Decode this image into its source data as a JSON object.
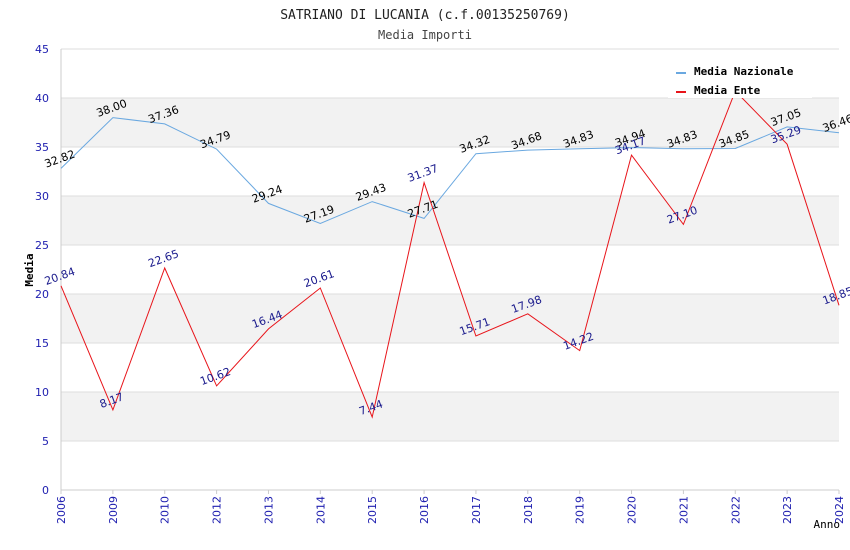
{
  "chart_data": {
    "type": "line",
    "title": "SATRIANO DI LUCANIA (c.f.00135250769)",
    "subtitle": "Media Importi",
    "xlabel": "Anno",
    "ylabel": "Media",
    "ylim": [
      0,
      45
    ],
    "yticks": [
      "0",
      "5",
      "10",
      "15",
      "20",
      "25",
      "30",
      "35",
      "40",
      "45"
    ],
    "grid": true,
    "legend_position": "top-right",
    "categories": [
      "2006",
      "2009",
      "2010",
      "2012",
      "2013",
      "2014",
      "2015",
      "2016",
      "2017",
      "2018",
      "2019",
      "2020",
      "2021",
      "2022",
      "2023",
      "2024"
    ],
    "series": [
      {
        "name": "Media Nazionale",
        "color": "#6aa8e0",
        "label_color": "#000000",
        "values": [
          32.82,
          38.0,
          37.36,
          34.79,
          29.24,
          27.19,
          29.43,
          27.71,
          34.32,
          34.68,
          34.83,
          34.94,
          34.83,
          34.85,
          37.05,
          36.46
        ],
        "labels": [
          "32.82",
          "38.00",
          "37.36",
          "34.79",
          "29.24",
          "27.19",
          "29.43",
          "27.71",
          "34.32",
          "34.68",
          "34.83",
          "34.94",
          "34.83",
          "34.85",
          "37.05",
          "36.46"
        ]
      },
      {
        "name": "Media Ente",
        "color": "#e8141a",
        "label_color": "#1a1a8c",
        "values": [
          20.84,
          8.17,
          22.65,
          10.62,
          16.44,
          20.61,
          7.44,
          31.37,
          15.71,
          17.98,
          14.22,
          34.17,
          27.1,
          40.71,
          35.29,
          18.85
        ],
        "labels": [
          "20.84",
          "8.17",
          "22.65",
          "10.62",
          "16.44",
          "20.61",
          "7.44",
          "31.37",
          "15.71",
          "17.98",
          "14.22",
          "34.17",
          "27.10",
          "",
          "35.29",
          "18.85"
        ]
      }
    ],
    "colors": {
      "axis_tick_text": "#2020b0",
      "band": "#f2f2f2",
      "gridline": "#dddddd",
      "axis": "#cccccc"
    }
  }
}
